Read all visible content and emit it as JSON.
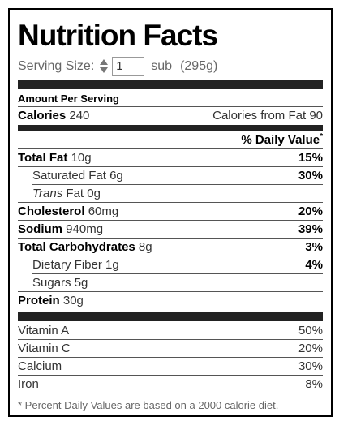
{
  "title": "Nutrition Facts",
  "serving": {
    "label": "Serving Size:",
    "quantity": "1",
    "unit": "sub",
    "weight": "(295g)"
  },
  "amount_per_serving": "Amount Per Serving",
  "calories": {
    "label": "Calories",
    "value": "240",
    "from_fat_label": "Calories from Fat",
    "from_fat_value": "90"
  },
  "daily_value_header": "% Daily Value",
  "daily_value_asterisk": "*",
  "nutrients": {
    "total_fat": {
      "label": "Total Fat",
      "amount": "10g",
      "dv": "15%"
    },
    "saturated_fat": {
      "label": "Saturated Fat",
      "amount": "6g",
      "dv": "30%"
    },
    "trans_fat": {
      "label_italic": "Trans",
      "label": "Fat",
      "amount": "0g"
    },
    "cholesterol": {
      "label": "Cholesterol",
      "amount": "60mg",
      "dv": "20%"
    },
    "sodium": {
      "label": "Sodium",
      "amount": "940mg",
      "dv": "39%"
    },
    "total_carbs": {
      "label": "Total Carbohydrates",
      "amount": "8g",
      "dv": "3%"
    },
    "dietary_fiber": {
      "label": "Dietary Fiber",
      "amount": "1g",
      "dv": "4%"
    },
    "sugars": {
      "label": "Sugars",
      "amount": "5g"
    },
    "protein": {
      "label": "Protein",
      "amount": "30g"
    }
  },
  "vitamins": {
    "vitamin_a": {
      "label": "Vitamin A",
      "dv": "50%"
    },
    "vitamin_c": {
      "label": "Vitamin C",
      "dv": "20%"
    },
    "calcium": {
      "label": "Calcium",
      "dv": "30%"
    },
    "iron": {
      "label": "Iron",
      "dv": "8%"
    }
  },
  "footnote": "* Percent Daily Values are based on a 2000 calorie diet."
}
